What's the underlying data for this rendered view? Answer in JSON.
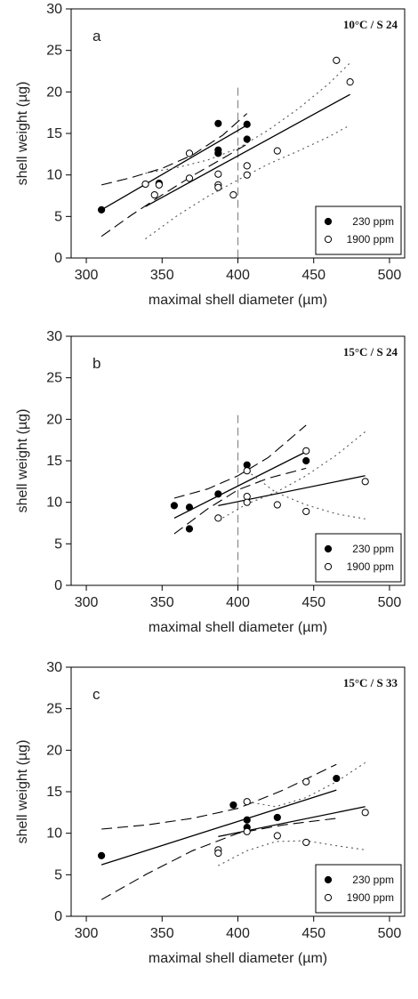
{
  "figure": {
    "panels": [
      "a",
      "b",
      "c"
    ]
  },
  "legend": [
    {
      "name": "230 ppm",
      "marker": "filled-circle",
      "color": "#000000"
    },
    {
      "name": "1900 ppm",
      "marker": "open-circle",
      "color": "#000000"
    }
  ],
  "chart_data": [
    {
      "type": "scatter",
      "panel": "a",
      "condition": "10°C / S 24",
      "xlabel": "maximal shell diameter (µm)",
      "ylabel": "shell weight (µg)",
      "xlim": [
        290,
        510
      ],
      "ylim": [
        0,
        30
      ],
      "xticks": [
        300,
        350,
        400,
        450,
        500
      ],
      "yticks": [
        0,
        5,
        10,
        15,
        20,
        25,
        30
      ],
      "grid": false,
      "legend_position": "bottom-right",
      "vline": 400,
      "series": [
        {
          "name": "230 ppm",
          "points": [
            [
              310,
              5.8
            ],
            [
              348,
              9.0
            ],
            [
              387,
              16.2
            ],
            [
              387,
              13.0
            ],
            [
              387,
              12.6
            ],
            [
              406,
              16.1
            ],
            [
              406,
              14.3
            ]
          ],
          "fit": {
            "x": [
              310,
              406
            ],
            "y": [
              5.8,
              16.0
            ]
          },
          "ci_upper": [
            [
              310,
              8.8
            ],
            [
              330,
              9.7
            ],
            [
              350,
              10.8
            ],
            [
              370,
              12.4
            ],
            [
              390,
              14.8
            ],
            [
              406,
              17.4
            ]
          ],
          "ci_lower": [
            [
              310,
              2.6
            ],
            [
              330,
              5.2
            ],
            [
              350,
              7.6
            ],
            [
              370,
              9.9
            ],
            [
              390,
              12.0
            ],
            [
              406,
              13.7
            ]
          ]
        },
        {
          "name": "1900 ppm",
          "points": [
            [
              339,
              8.9
            ],
            [
              345,
              7.6
            ],
            [
              348,
              8.8
            ],
            [
              368,
              12.6
            ],
            [
              368,
              9.6
            ],
            [
              387,
              10.1
            ],
            [
              387,
              8.8
            ],
            [
              387,
              8.5
            ],
            [
              397,
              7.6
            ],
            [
              406,
              11.1
            ],
            [
              406,
              10.0
            ],
            [
              426,
              12.9
            ],
            [
              465,
              23.8
            ],
            [
              474,
              21.2
            ]
          ],
          "fit": {
            "x": [
              339,
              474
            ],
            "y": [
              6.2,
              19.7
            ]
          },
          "ci_upper": [
            [
              339,
              10.2
            ],
            [
              360,
              10.9
            ],
            [
              380,
              11.8
            ],
            [
              400,
              13.2
            ],
            [
              420,
              15.4
            ],
            [
              440,
              18.0
            ],
            [
              460,
              21.0
            ],
            [
              474,
              23.5
            ]
          ],
          "ci_lower": [
            [
              339,
              2.3
            ],
            [
              360,
              5.1
            ],
            [
              380,
              7.4
            ],
            [
              400,
              9.4
            ],
            [
              420,
              11.3
            ],
            [
              440,
              12.9
            ],
            [
              460,
              14.6
            ],
            [
              474,
              16.0
            ]
          ]
        }
      ]
    },
    {
      "type": "scatter",
      "panel": "b",
      "condition": "15°C / S 24",
      "xlabel": "maximal shell diameter (µm)",
      "ylabel": "shell weight (µg)",
      "xlim": [
        290,
        510
      ],
      "ylim": [
        0,
        30
      ],
      "xticks": [
        300,
        350,
        400,
        450,
        500
      ],
      "yticks": [
        0,
        5,
        10,
        15,
        20,
        25,
        30
      ],
      "grid": false,
      "legend_position": "bottom-right",
      "vline": 400,
      "series": [
        {
          "name": "230 ppm",
          "points": [
            [
              358,
              9.6
            ],
            [
              368,
              9.4
            ],
            [
              368,
              6.8
            ],
            [
              387,
              11.0
            ],
            [
              406,
              14.5
            ],
            [
              445,
              15.0
            ]
          ],
          "fit": {
            "x": [
              358,
              445
            ],
            "y": [
              8.1,
              16.1
            ]
          },
          "ci_upper": [
            [
              358,
              10.5
            ],
            [
              380,
              11.6
            ],
            [
              400,
              13.2
            ],
            [
              420,
              15.4
            ],
            [
              445,
              19.3
            ]
          ],
          "ci_lower": [
            [
              358,
              6.2
            ],
            [
              380,
              9.2
            ],
            [
              400,
              11.5
            ],
            [
              420,
              12.9
            ],
            [
              445,
              14.1
            ]
          ]
        },
        {
          "name": "1900 ppm",
          "points": [
            [
              387,
              8.1
            ],
            [
              406,
              13.8
            ],
            [
              406,
              10.7
            ],
            [
              406,
              10.0
            ],
            [
              426,
              9.7
            ],
            [
              445,
              16.2
            ],
            [
              445,
              8.9
            ],
            [
              484,
              12.5
            ]
          ],
          "fit": {
            "x": [
              387,
              484
            ],
            "y": [
              9.6,
              13.2
            ]
          },
          "ci_upper": [
            [
              387,
              7.8
            ],
            [
              406,
              9.8
            ],
            [
              425,
              11.2
            ],
            [
              445,
              13.2
            ],
            [
              465,
              15.7
            ],
            [
              484,
              18.5
            ]
          ],
          "ci_lower": [
            [
              406,
              13.8
            ],
            [
              425,
              11.2
            ],
            [
              445,
              9.7
            ],
            [
              465,
              8.6
            ],
            [
              484,
              8.0
            ]
          ]
        }
      ]
    },
    {
      "type": "scatter",
      "panel": "c",
      "condition": "15°C / S 33",
      "xlabel": "maximal shell diameter (µm)",
      "ylabel": "shell weight (µg)",
      "xlim": [
        290,
        510
      ],
      "ylim": [
        0,
        30
      ],
      "xticks": [
        300,
        350,
        400,
        450,
        500
      ],
      "yticks": [
        0,
        5,
        10,
        15,
        20,
        25,
        30
      ],
      "grid": false,
      "legend_position": "bottom-right",
      "series": [
        {
          "name": "230 ppm",
          "points": [
            [
              310,
              7.3
            ],
            [
              397,
              13.4
            ],
            [
              406,
              11.6
            ],
            [
              406,
              10.7
            ],
            [
              426,
              11.9
            ],
            [
              465,
              16.6
            ]
          ],
          "fit": {
            "x": [
              310,
              465
            ],
            "y": [
              6.2,
              15.2
            ]
          },
          "ci_upper": [
            [
              310,
              10.5
            ],
            [
              340,
              11.0
            ],
            [
              370,
              11.8
            ],
            [
              400,
              13.0
            ],
            [
              430,
              15.2
            ],
            [
              465,
              18.3
            ]
          ],
          "ci_lower": [
            [
              310,
              2.0
            ],
            [
              340,
              5.1
            ],
            [
              370,
              7.9
            ],
            [
              400,
              10.0
            ],
            [
              430,
              11.0
            ],
            [
              465,
              11.8
            ]
          ]
        },
        {
          "name": "1900 ppm",
          "points": [
            [
              387,
              8.0
            ],
            [
              387,
              7.6
            ],
            [
              406,
              13.8
            ],
            [
              406,
              10.2
            ],
            [
              426,
              9.7
            ],
            [
              445,
              16.2
            ],
            [
              445,
              8.9
            ],
            [
              484,
              12.5
            ]
          ],
          "fit": {
            "x": [
              387,
              484
            ],
            "y": [
              9.6,
              13.2
            ]
          },
          "ci_upper": [
            [
              387,
              6.1
            ],
            [
              406,
              7.9
            ],
            [
              425,
              9.0
            ],
            [
              445,
              9.1
            ],
            [
              465,
              8.5
            ],
            [
              484,
              8.0
            ]
          ],
          "ci_lower": [
            [
              406,
              13.8
            ],
            [
              425,
              13.2
            ],
            [
              445,
              14.3
            ],
            [
              465,
              16.2
            ],
            [
              484,
              18.5
            ]
          ]
        }
      ]
    }
  ]
}
